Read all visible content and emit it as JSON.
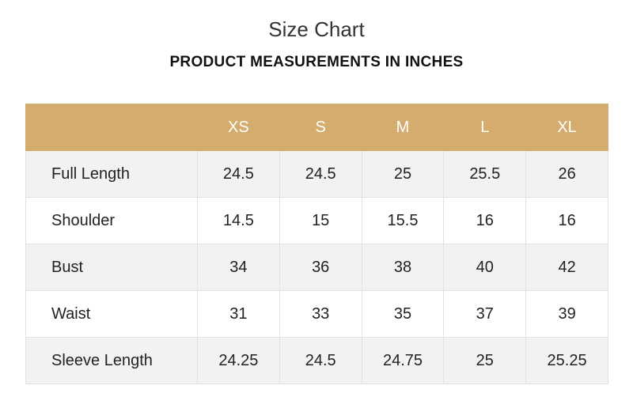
{
  "title": "Size Chart",
  "subtitle": "PRODUCT MEASUREMENTS IN INCHES",
  "colors": {
    "header_bg": "#d4ac6e",
    "header_text": "#ffffff",
    "row_alt_bg": "#f2f2f2"
  },
  "table": {
    "corner": "",
    "sizes": [
      "XS",
      "S",
      "M",
      "L",
      "XL"
    ],
    "rows": [
      {
        "label": "Full Length",
        "values": [
          "24.5",
          "24.5",
          "25",
          "25.5",
          "26"
        ]
      },
      {
        "label": "Shoulder",
        "values": [
          "14.5",
          "15",
          "15.5",
          "16",
          "16"
        ]
      },
      {
        "label": "Bust",
        "values": [
          "34",
          "36",
          "38",
          "40",
          "42"
        ]
      },
      {
        "label": "Waist",
        "values": [
          "31",
          "33",
          "35",
          "37",
          "39"
        ]
      },
      {
        "label": "Sleeve Length",
        "values": [
          "24.25",
          "24.5",
          "24.75",
          "25",
          "25.25"
        ]
      }
    ]
  }
}
